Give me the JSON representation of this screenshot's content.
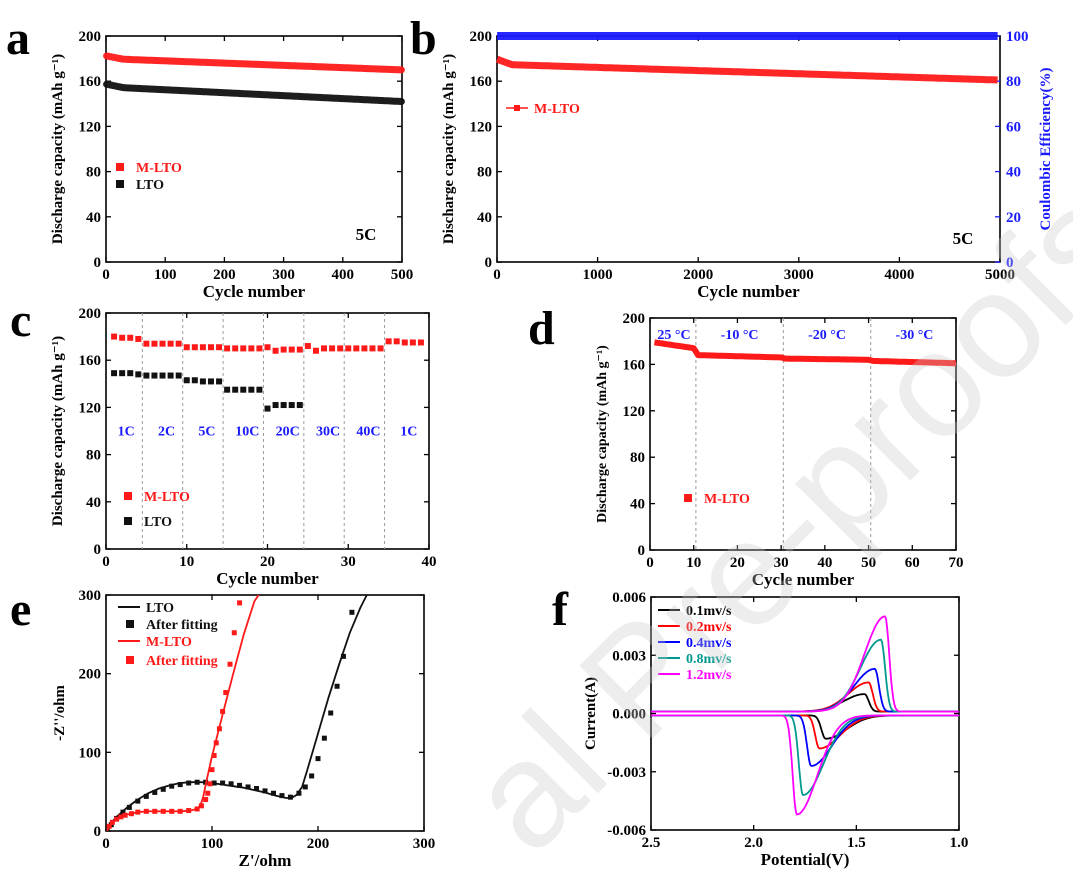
{
  "watermark": "al Pre-proofs",
  "panels": {
    "a": {
      "letter": "a"
    },
    "b": {
      "letter": "b"
    },
    "c": {
      "letter": "c"
    },
    "d": {
      "letter": "d"
    },
    "e": {
      "letter": "e"
    },
    "f": {
      "letter": "f"
    }
  },
  "chart_data": [
    {
      "panel": "a",
      "type": "scatter",
      "xlabel": "Cycle number",
      "ylabel": "Discharge capacity (mAh g⁻¹)",
      "xlim": [
        0,
        500
      ],
      "ylim": [
        0,
        200
      ],
      "xticks": [
        0,
        100,
        200,
        300,
        400,
        500
      ],
      "yticks": [
        0,
        40,
        80,
        120,
        160,
        200
      ],
      "series": [
        {
          "name": "M-LTO",
          "color": "#ff1a1a",
          "x": [
            1,
            500
          ],
          "y": [
            180,
            170
          ]
        },
        {
          "name": "LTO",
          "color": "#111111",
          "x": [
            1,
            500
          ],
          "y": [
            155,
            142
          ]
        }
      ],
      "annotations": [
        "5C"
      ],
      "legend": "middle-left"
    },
    {
      "panel": "b",
      "type": "scatter",
      "xlabel": "Cycle number",
      "ylabel": "Discharge capacity (mAh g⁻¹)",
      "ylabel_right": "Coulombic Efficiency(%)",
      "xlim": [
        0,
        5000
      ],
      "ylim": [
        0,
        200
      ],
      "ylim_right": [
        0,
        100
      ],
      "xticks": [
        0,
        1000,
        2000,
        3000,
        4000,
        5000
      ],
      "yticks": [
        0,
        40,
        80,
        120,
        160,
        200
      ],
      "yticks_right": [
        0,
        20,
        40,
        60,
        80,
        100
      ],
      "series": [
        {
          "name": "M-LTO",
          "color": "#ff1a1a",
          "axis": "left",
          "x": [
            1,
            5000
          ],
          "y": [
            175,
            161
          ]
        },
        {
          "name": "",
          "color": "#1a1aff",
          "axis": "right",
          "x": [
            1,
            5000
          ],
          "y": [
            100,
            100
          ]
        }
      ],
      "annotations": [
        "5C"
      ],
      "legend": "upper-left"
    },
    {
      "panel": "c",
      "type": "scatter",
      "xlabel": "Cycle number",
      "ylabel": "Discharge capacity (mAh g⁻¹)",
      "xlim": [
        0,
        40
      ],
      "ylim": [
        0,
        200
      ],
      "xticks": [
        0,
        10,
        20,
        30,
        40
      ],
      "yticks": [
        0,
        40,
        80,
        120,
        160,
        200
      ],
      "rate_labels": [
        "1C",
        "2C",
        "5C",
        "10C",
        "20C",
        "30C",
        "40C",
        "1C"
      ],
      "dividers_x": [
        4.5,
        9.5,
        14.5,
        19.5,
        24.5,
        29.5,
        34.5
      ],
      "series": [
        {
          "name": "M-LTO",
          "color": "#ff1a1a",
          "x": [
            1,
            2,
            3,
            4,
            5,
            6,
            7,
            8,
            9,
            10,
            11,
            12,
            13,
            14,
            15,
            16,
            17,
            18,
            19,
            20,
            21,
            22,
            23,
            24,
            25,
            26,
            27,
            28,
            29,
            30,
            31,
            32,
            33,
            34,
            35,
            36,
            37,
            38,
            39
          ],
          "y": [
            180,
            179,
            179,
            178,
            174,
            174,
            174,
            174,
            174,
            171,
            171,
            171,
            171,
            171,
            170,
            170,
            170,
            170,
            170,
            171,
            168,
            169,
            169,
            169,
            172,
            168,
            170,
            170,
            170,
            170,
            170,
            170,
            170,
            170,
            176,
            176,
            175,
            175,
            175
          ]
        },
        {
          "name": "LTO",
          "color": "#111111",
          "x": [
            1,
            2,
            3,
            4,
            5,
            6,
            7,
            8,
            9,
            10,
            11,
            12,
            13,
            14,
            15,
            16,
            17,
            18,
            19,
            20,
            21,
            22,
            23,
            24
          ],
          "y": [
            149,
            149,
            149,
            148,
            147,
            147,
            147,
            147,
            147,
            143,
            143,
            142,
            142,
            142,
            135,
            135,
            135,
            135,
            135,
            119,
            122,
            122,
            122,
            122
          ]
        }
      ],
      "legend": "lower-left"
    },
    {
      "panel": "d",
      "type": "scatter",
      "xlabel": "Cycle number",
      "ylabel": "Discharge capacity (mAh g⁻¹)",
      "xlim": [
        0,
        70
      ],
      "ylim": [
        0,
        200
      ],
      "xticks": [
        0,
        10,
        20,
        30,
        40,
        50,
        60,
        70
      ],
      "yticks": [
        0,
        40,
        80,
        120,
        160,
        200
      ],
      "temperature_labels": [
        "25 °C",
        "-10 °C",
        "-20 °C",
        "-30 °C"
      ],
      "dividers_x": [
        10.5,
        30.5,
        50.5
      ],
      "series": [
        {
          "name": "M-LTO",
          "color": "#ff1a1a",
          "x": [
            1,
            10,
            11,
            30,
            31,
            50,
            51,
            70
          ],
          "y": [
            179,
            174,
            168,
            166,
            165,
            164,
            163,
            161
          ]
        }
      ],
      "legend": "lower-left"
    },
    {
      "panel": "e",
      "type": "scatter",
      "xlabel": "Z'/ohm",
      "ylabel": "-Z''/ohm",
      "xlim": [
        0,
        300
      ],
      "ylim": [
        0,
        300
      ],
      "xticks": [
        0,
        100,
        200,
        300
      ],
      "yticks": [
        0,
        100,
        200,
        300
      ],
      "series": [
        {
          "name": "LTO",
          "color": "#111111",
          "style": "line",
          "x": [
            2,
            5,
            10,
            20,
            30,
            40,
            50,
            60,
            70,
            80,
            90,
            100,
            110,
            120,
            130,
            140,
            150,
            160,
            170,
            175,
            180,
            185,
            190,
            200,
            210,
            220,
            230,
            240,
            246
          ],
          "y": [
            0,
            10,
            18,
            30,
            40,
            48,
            54,
            58,
            61,
            62,
            62,
            61,
            59,
            57,
            55,
            52,
            49,
            45,
            42,
            42,
            46,
            56,
            78,
            124,
            170,
            212,
            252,
            284,
            300
          ]
        },
        {
          "name": "After fitting",
          "color": "#111111",
          "style": "markers",
          "x": [
            5,
            10,
            16,
            22,
            30,
            38,
            46,
            54,
            62,
            70,
            78,
            86,
            94,
            102,
            110,
            118,
            126,
            134,
            142,
            150,
            158,
            166,
            174,
            182,
            188,
            194,
            200,
            206,
            212,
            218,
            224,
            232
          ],
          "y": [
            8,
            16,
            24,
            30,
            38,
            44,
            49,
            53,
            57,
            59,
            61,
            62,
            62,
            61,
            61,
            60,
            58,
            56,
            54,
            51,
            48,
            45,
            43,
            48,
            56,
            70,
            92,
            118,
            150,
            184,
            222,
            278
          ]
        },
        {
          "name": "M-LTO",
          "color": "#ff1a1a",
          "style": "line",
          "x": [
            1,
            3,
            6,
            10,
            15,
            20,
            30,
            40,
            50,
            60,
            70,
            80,
            85,
            88,
            90,
            92,
            95,
            100,
            110,
            120,
            130,
            140,
            144
          ],
          "y": [
            0,
            5,
            10,
            15,
            19,
            21,
            24,
            25,
            25,
            25,
            25,
            26,
            28,
            31,
            36,
            45,
            65,
            95,
            148,
            200,
            250,
            292,
            300
          ]
        },
        {
          "name": "After fitting",
          "color": "#ff1a1a",
          "style": "markers",
          "x": [
            3,
            6,
            10,
            14,
            18,
            24,
            30,
            38,
            46,
            54,
            62,
            70,
            78,
            86,
            90,
            94,
            96,
            98,
            100,
            102,
            104,
            107,
            110,
            113,
            117,
            121,
            126
          ],
          "y": [
            6,
            11,
            15,
            18,
            20,
            22,
            24,
            25,
            25,
            25,
            25,
            25,
            26,
            28,
            32,
            40,
            48,
            60,
            78,
            96,
            112,
            130,
            152,
            176,
            212,
            252,
            290
          ]
        }
      ],
      "legend": "upper-left"
    },
    {
      "panel": "f",
      "type": "line",
      "xlabel": "Potential(V)",
      "ylabel": "Current(A)",
      "xlim": [
        2.5,
        1.0
      ],
      "ylim": [
        -0.006,
        0.006
      ],
      "xticks": [
        2.5,
        2.0,
        1.5,
        1.0
      ],
      "yticks": [
        -0.006,
        -0.003,
        0.0,
        0.003,
        0.006
      ],
      "series": [
        {
          "name": "0.1mv/s",
          "color": "#000000",
          "anodic_peak": [
            1.46,
            0.0009
          ],
          "cathodic_peak": [
            1.65,
            -0.0012
          ]
        },
        {
          "name": "0.2mv/s",
          "color": "#ff0000",
          "anodic_peak": [
            1.44,
            0.0015
          ],
          "cathodic_peak": [
            1.68,
            -0.0017
          ]
        },
        {
          "name": "0.4mv/s",
          "color": "#0000ff",
          "anodic_peak": [
            1.41,
            0.0022
          ],
          "cathodic_peak": [
            1.72,
            -0.0026
          ]
        },
        {
          "name": "0.8mv/s",
          "color": "#00998f",
          "anodic_peak": [
            1.38,
            0.0037
          ],
          "cathodic_peak": [
            1.76,
            -0.0041
          ]
        },
        {
          "name": "1.2mv/s",
          "color": "#ff00ff",
          "anodic_peak": [
            1.36,
            0.0049
          ],
          "cathodic_peak": [
            1.79,
            -0.0051
          ]
        }
      ],
      "legend": "upper-left"
    }
  ]
}
